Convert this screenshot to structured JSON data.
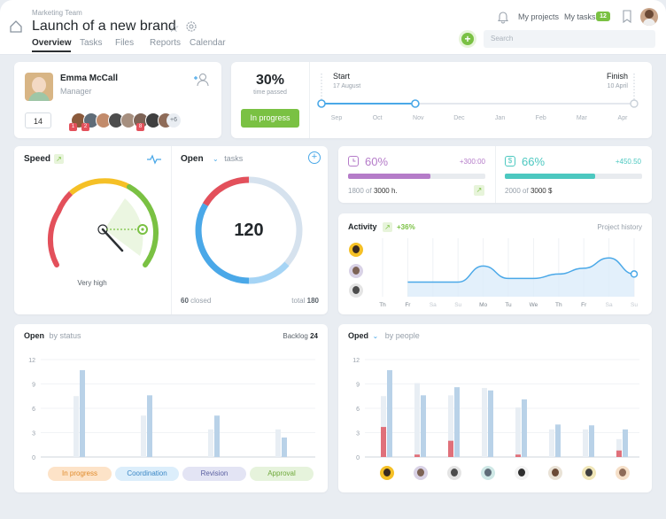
{
  "header": {
    "team": "Marketing Team",
    "title": "Launch of a new brand",
    "tabs": [
      "Overview",
      "Tasks",
      "Files",
      "Reports",
      "Calendar"
    ],
    "my_projects": "My projects",
    "my_tasks": "My tasks",
    "my_tasks_count": "12",
    "search_placeholder": "Search"
  },
  "profile": {
    "name": "Emma McCall",
    "role": "Manager",
    "count": "14",
    "members_more": "+6",
    "member_badges": [
      "1",
      "2",
      "8"
    ]
  },
  "timeline": {
    "percent": "30%",
    "percent_label": "time passed",
    "status": "In progress",
    "start_label": "Start",
    "start_date": "17 August",
    "finish_label": "Finish",
    "finish_date": "10 April",
    "months": [
      "Sep",
      "Oct",
      "Nov",
      "Dec",
      "Jan",
      "Feb",
      "Mar",
      "Apr"
    ],
    "progress": 0.3
  },
  "speed": {
    "title": "Speed",
    "value_label": "Very high",
    "level": 0.82
  },
  "open_tasks": {
    "title": "Open",
    "dropdown": "tasks",
    "total_open": "120",
    "closed_value": "60",
    "closed_label": "closed",
    "total_label": "total",
    "total_value": "180"
  },
  "budget": {
    "time": {
      "percent": "60%",
      "delta": "+300:00",
      "used": "1800 of",
      "total": "3000 h.",
      "fraction": 0.6
    },
    "money": {
      "percent": "66%",
      "delta": "+450.50",
      "used": "2000 of",
      "total": "3000 $",
      "fraction": 0.66
    }
  },
  "activity": {
    "title": "Activity",
    "change": "+36%",
    "link": "Project history",
    "days": [
      "Th",
      "Fr",
      "Sa",
      "Su",
      "Mo",
      "Tu",
      "We",
      "Th",
      "Fr",
      "Sa",
      "Su"
    ]
  },
  "open_status": {
    "title": "Open",
    "subtitle": "by status",
    "backlog_label": "Backlog",
    "backlog_value": "24",
    "pills": [
      "In progress",
      "Coordination",
      "Revision",
      "Approval"
    ]
  },
  "oped_people": {
    "title": "Oped",
    "subtitle": "by people"
  },
  "colors": {
    "accent_green": "#7ac143",
    "accent_blue": "#4aa8e8",
    "purple": "#b57cc9",
    "teal": "#4cc8c0",
    "red": "#e3505b"
  },
  "chart_data": [
    {
      "type": "line",
      "title": "Activity",
      "x": [
        "Th",
        "Fr",
        "Sa",
        "Su",
        "Mo",
        "Tu",
        "We",
        "Th",
        "Fr",
        "Sa",
        "Su"
      ],
      "series": [
        {
          "values": [
            null,
            0,
            0,
            0,
            1.1,
            0.25,
            0.25,
            0.55,
            0.95,
            1.65,
            0.55
          ]
        }
      ],
      "ylim": [
        -1,
        3
      ],
      "grid": true
    },
    {
      "type": "bar",
      "title": "Open by status",
      "categories": [
        "In progress",
        "Coordination",
        "Revision",
        "Approval"
      ],
      "series": [
        {
          "values": [
            7.5,
            5.1,
            3.4,
            3.4
          ]
        },
        {
          "values": [
            10.7,
            7.6,
            5.1,
            2.4
          ]
        }
      ],
      "ylim": [
        0,
        12
      ],
      "yticks": [
        0,
        3,
        6,
        9,
        12
      ]
    },
    {
      "type": "bar",
      "title": "Oped by people",
      "categories": [
        "1",
        "2",
        "3",
        "4",
        "5",
        "6",
        "7",
        "8"
      ],
      "series": [
        {
          "values": [
            7.5,
            9.1,
            7.6,
            8.5,
            6.1,
            3.4,
            3.4,
            2.2
          ]
        },
        {
          "values": [
            10.7,
            7.6,
            8.6,
            8.2,
            7.1,
            4.0,
            3.9,
            3.4
          ]
        },
        {
          "values": [
            3.7,
            0.3,
            2.0,
            0,
            0.3,
            0,
            0,
            0.8
          ]
        }
      ],
      "ylim": [
        0,
        12
      ],
      "yticks": [
        0,
        3,
        6,
        9,
        12
      ]
    }
  ]
}
